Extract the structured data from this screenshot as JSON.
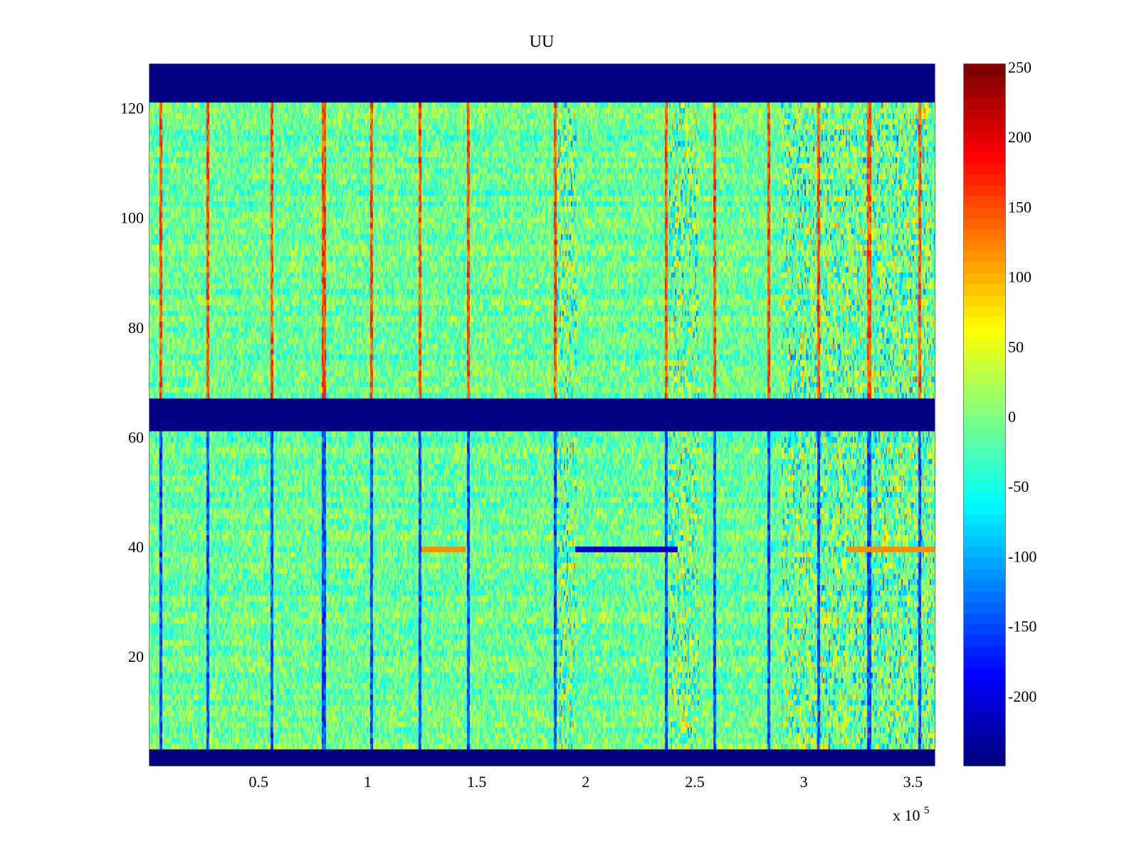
{
  "chart_data": {
    "type": "heatmap",
    "title": "UU",
    "xlabel": "",
    "ylabel": "",
    "x_exponent_label": "x 10",
    "x_exponent_power": "5",
    "xlim": [
      0,
      3.6
    ],
    "ylim": [
      0,
      128
    ],
    "x_ticks": [
      {
        "value": 0.5,
        "label": "0.5"
      },
      {
        "value": 1.0,
        "label": "1"
      },
      {
        "value": 1.5,
        "label": "1.5"
      },
      {
        "value": 2.0,
        "label": "2"
      },
      {
        "value": 2.5,
        "label": "2.5"
      },
      {
        "value": 3.0,
        "label": "3"
      },
      {
        "value": 3.5,
        "label": "3.5"
      }
    ],
    "y_ticks": [
      {
        "value": 20,
        "label": "20"
      },
      {
        "value": 40,
        "label": "40"
      },
      {
        "value": 60,
        "label": "60"
      },
      {
        "value": 80,
        "label": "80"
      },
      {
        "value": 100,
        "label": "100"
      },
      {
        "value": 120,
        "label": "120"
      }
    ],
    "colorbar": {
      "colormap": "jet",
      "range": [
        -250,
        252
      ],
      "ticks": [
        {
          "value": 250,
          "label": "250"
        },
        {
          "value": 200,
          "label": "200"
        },
        {
          "value": 150,
          "label": "150"
        },
        {
          "value": 100,
          "label": "100"
        },
        {
          "value": 50,
          "label": "50"
        },
        {
          "value": 0,
          "label": "0"
        },
        {
          "value": -50,
          "label": "-50"
        },
        {
          "value": -100,
          "label": "-100"
        },
        {
          "value": -150,
          "label": "-150"
        },
        {
          "value": -200,
          "label": "-200"
        }
      ]
    },
    "masked_row_bands": [
      {
        "y_from": 0,
        "y_to": 3,
        "value": -250
      },
      {
        "y_from": 61,
        "y_to": 67,
        "value": -250
      },
      {
        "y_from": 121,
        "y_to": 128,
        "value": -250
      }
    ],
    "vertical_event_lines_x": [
      0.05,
      0.27,
      0.56,
      0.8,
      1.02,
      1.24,
      1.46,
      1.86,
      2.37,
      2.59,
      2.84,
      3.07,
      3.3,
      3.53
    ],
    "active_regions_x": [
      {
        "from": 1.86,
        "to": 1.96
      },
      {
        "from": 2.38,
        "to": 2.52
      },
      {
        "from": 2.9,
        "to": 3.6
      }
    ],
    "baseline_value_range": [
      -60,
      40
    ],
    "notable_row": {
      "y": 39,
      "note": "strong negative values around x 1.95-2.42, positive near x 1.25-1.45 and 3.2-3.6"
    }
  }
}
